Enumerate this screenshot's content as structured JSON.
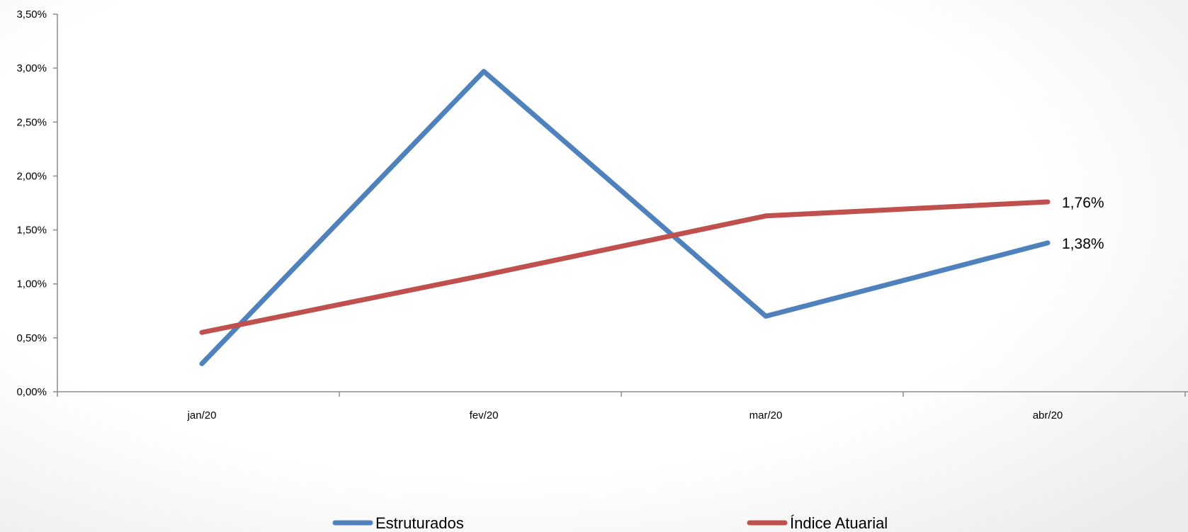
{
  "chart_data": {
    "type": "line",
    "title": "",
    "xlabel": "",
    "ylabel": "",
    "categories": [
      "jan/20",
      "fev/20",
      "mar/20",
      "abr/20"
    ],
    "ylim": [
      0,
      3.5
    ],
    "y_ticks": [
      "0,00%",
      "0,50%",
      "1,00%",
      "1,50%",
      "2,00%",
      "2,50%",
      "3,00%",
      "3,50%"
    ],
    "y_tick_values": [
      0,
      0.5,
      1.0,
      1.5,
      2.0,
      2.5,
      3.0,
      3.5
    ],
    "grid": false,
    "legend_position": "bottom",
    "series": [
      {
        "name": "Estruturados",
        "color": "#4F81BD",
        "values": [
          0.26,
          2.97,
          0.7,
          1.38
        ],
        "last_label": "1,38%"
      },
      {
        "name": "Índice Atuarial",
        "color": "#C0504D",
        "values": [
          0.55,
          1.08,
          1.63,
          1.76
        ],
        "last_label": "1,76%"
      }
    ]
  }
}
